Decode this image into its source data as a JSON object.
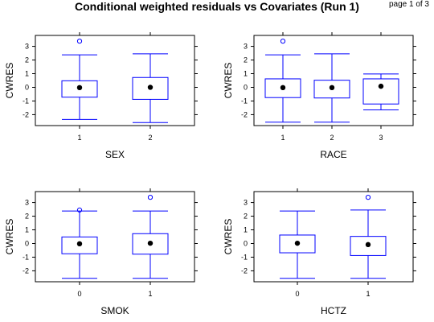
{
  "title": "Conditional weighted residuals vs Covariates (Run 1)",
  "page_indicator": "page 1 of 3",
  "colors": {
    "box": "#0000ff",
    "median_dot": "#000000",
    "outlier": "#0000ff",
    "frame": "#000000"
  },
  "chart_data": [
    {
      "type": "boxplot",
      "xlabel": "SEX",
      "ylabel": "CWRES",
      "ylim": [
        -2.8,
        3.8
      ],
      "yticks": [
        -2,
        -1,
        0,
        1,
        2,
        3
      ],
      "categories": [
        "1",
        "2"
      ],
      "boxes": [
        {
          "category": "1",
          "whisker_low": -2.35,
          "q1": -0.72,
          "median": -0.02,
          "q3": 0.48,
          "whisker_high": 2.38,
          "outliers": [
            3.38
          ]
        },
        {
          "category": "2",
          "whisker_low": -2.58,
          "q1": -0.88,
          "median": 0.0,
          "q3": 0.72,
          "whisker_high": 2.45,
          "outliers": []
        }
      ]
    },
    {
      "type": "boxplot",
      "xlabel": "RACE",
      "ylabel": "CWRES",
      "ylim": [
        -2.8,
        3.8
      ],
      "yticks": [
        -2,
        -1,
        0,
        1,
        2,
        3
      ],
      "categories": [
        "1",
        "2",
        "3"
      ],
      "boxes": [
        {
          "category": "1",
          "whisker_low": -2.55,
          "q1": -0.75,
          "median": -0.02,
          "q3": 0.62,
          "whisker_high": 2.38,
          "outliers": [
            3.38
          ]
        },
        {
          "category": "2",
          "whisker_low": -2.55,
          "q1": -0.78,
          "median": -0.02,
          "q3": 0.52,
          "whisker_high": 2.45,
          "outliers": []
        },
        {
          "category": "3",
          "whisker_low": -1.65,
          "q1": -1.22,
          "median": 0.08,
          "q3": 0.62,
          "whisker_high": 0.98,
          "outliers": []
        }
      ]
    },
    {
      "type": "boxplot",
      "xlabel": "SMOK",
      "ylabel": "CWRES",
      "ylim": [
        -2.8,
        3.8
      ],
      "yticks": [
        -2,
        -1,
        0,
        1,
        2,
        3
      ],
      "categories": [
        "0",
        "1"
      ],
      "boxes": [
        {
          "category": "0",
          "whisker_low": -2.55,
          "q1": -0.75,
          "median": -0.02,
          "q3": 0.48,
          "whisker_high": 2.38,
          "outliers": [
            2.45
          ]
        },
        {
          "category": "1",
          "whisker_low": -2.55,
          "q1": -0.78,
          "median": 0.02,
          "q3": 0.72,
          "whisker_high": 2.38,
          "outliers": [
            3.38
          ]
        }
      ]
    },
    {
      "type": "boxplot",
      "xlabel": "HCTZ",
      "ylabel": "CWRES",
      "ylim": [
        -2.8,
        3.8
      ],
      "yticks": [
        -2,
        -1,
        0,
        1,
        2,
        3
      ],
      "categories": [
        "0",
        "1"
      ],
      "boxes": [
        {
          "category": "0",
          "whisker_low": -2.55,
          "q1": -0.68,
          "median": 0.02,
          "q3": 0.62,
          "whisker_high": 2.38,
          "outliers": []
        },
        {
          "category": "1",
          "whisker_low": -2.55,
          "q1": -0.88,
          "median": -0.08,
          "q3": 0.52,
          "whisker_high": 2.45,
          "outliers": [
            3.38
          ]
        }
      ]
    }
  ]
}
